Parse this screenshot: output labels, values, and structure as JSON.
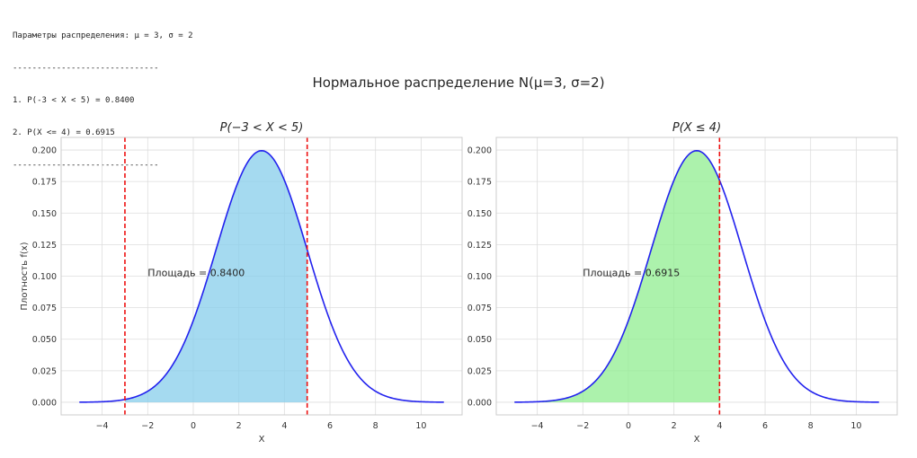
{
  "console": {
    "lines": [
      "Параметры распределения: μ = 3, σ = 2",
      "------------------------------",
      "1. P(-3 < X < 5) = 0.8400",
      "2. P(X <= 4) = 0.6915",
      "------------------------------"
    ]
  },
  "figure": {
    "suptitle": "Нормальное распределение N(μ=3, σ=2)"
  },
  "colors": {
    "curve": "#2222ee",
    "fill_left": "#87ceeb",
    "fill_right": "#90ee90",
    "vline": "#ee1111",
    "grid": "#dddddd"
  },
  "chart_data": [
    {
      "type": "area",
      "title": "P(−3 < X < 5)",
      "xlabel": "X",
      "ylabel": "Плотность f(x)",
      "distribution": {
        "mu": 3,
        "sigma": 2
      },
      "x_range": [
        -5,
        11
      ],
      "xlim": [
        -5.8,
        11.8
      ],
      "ylim": [
        -0.01,
        0.21
      ],
      "xticks": [
        -4,
        -2,
        0,
        2,
        4,
        6,
        8,
        10
      ],
      "xtick_labels": [
        "−4",
        "−2",
        "0",
        "2",
        "4",
        "6",
        "8",
        "10"
      ],
      "yticks": [
        0,
        0.025,
        0.05,
        0.075,
        0.1,
        0.125,
        0.15,
        0.175,
        0.2
      ],
      "ytick_labels": [
        "0.000",
        "0.025",
        "0.050",
        "0.075",
        "0.100",
        "0.125",
        "0.150",
        "0.175",
        "0.200"
      ],
      "shade": [
        -3,
        5
      ],
      "vlines": [
        -3,
        5
      ],
      "annotation": {
        "text": "Площадь = 0.8400",
        "x": -2,
        "y": 0.1
      },
      "grid": true
    },
    {
      "type": "area",
      "title": "P(X ≤ 4)",
      "xlabel": "X",
      "ylabel": "",
      "distribution": {
        "mu": 3,
        "sigma": 2
      },
      "x_range": [
        -5,
        11
      ],
      "xlim": [
        -5.8,
        11.8
      ],
      "ylim": [
        -0.01,
        0.21
      ],
      "xticks": [
        -4,
        -2,
        0,
        2,
        4,
        6,
        8,
        10
      ],
      "xtick_labels": [
        "−4",
        "−2",
        "0",
        "2",
        "4",
        "6",
        "8",
        "10"
      ],
      "yticks": [
        0,
        0.025,
        0.05,
        0.075,
        0.1,
        0.125,
        0.15,
        0.175,
        0.2
      ],
      "ytick_labels": [
        "0.000",
        "0.025",
        "0.050",
        "0.075",
        "0.100",
        "0.125",
        "0.150",
        "0.175",
        "0.200"
      ],
      "shade": [
        -5,
        4
      ],
      "vlines": [
        4
      ],
      "annotation": {
        "text": "Площадь = 0.6915",
        "x": -2,
        "y": 0.1
      },
      "grid": true
    }
  ]
}
